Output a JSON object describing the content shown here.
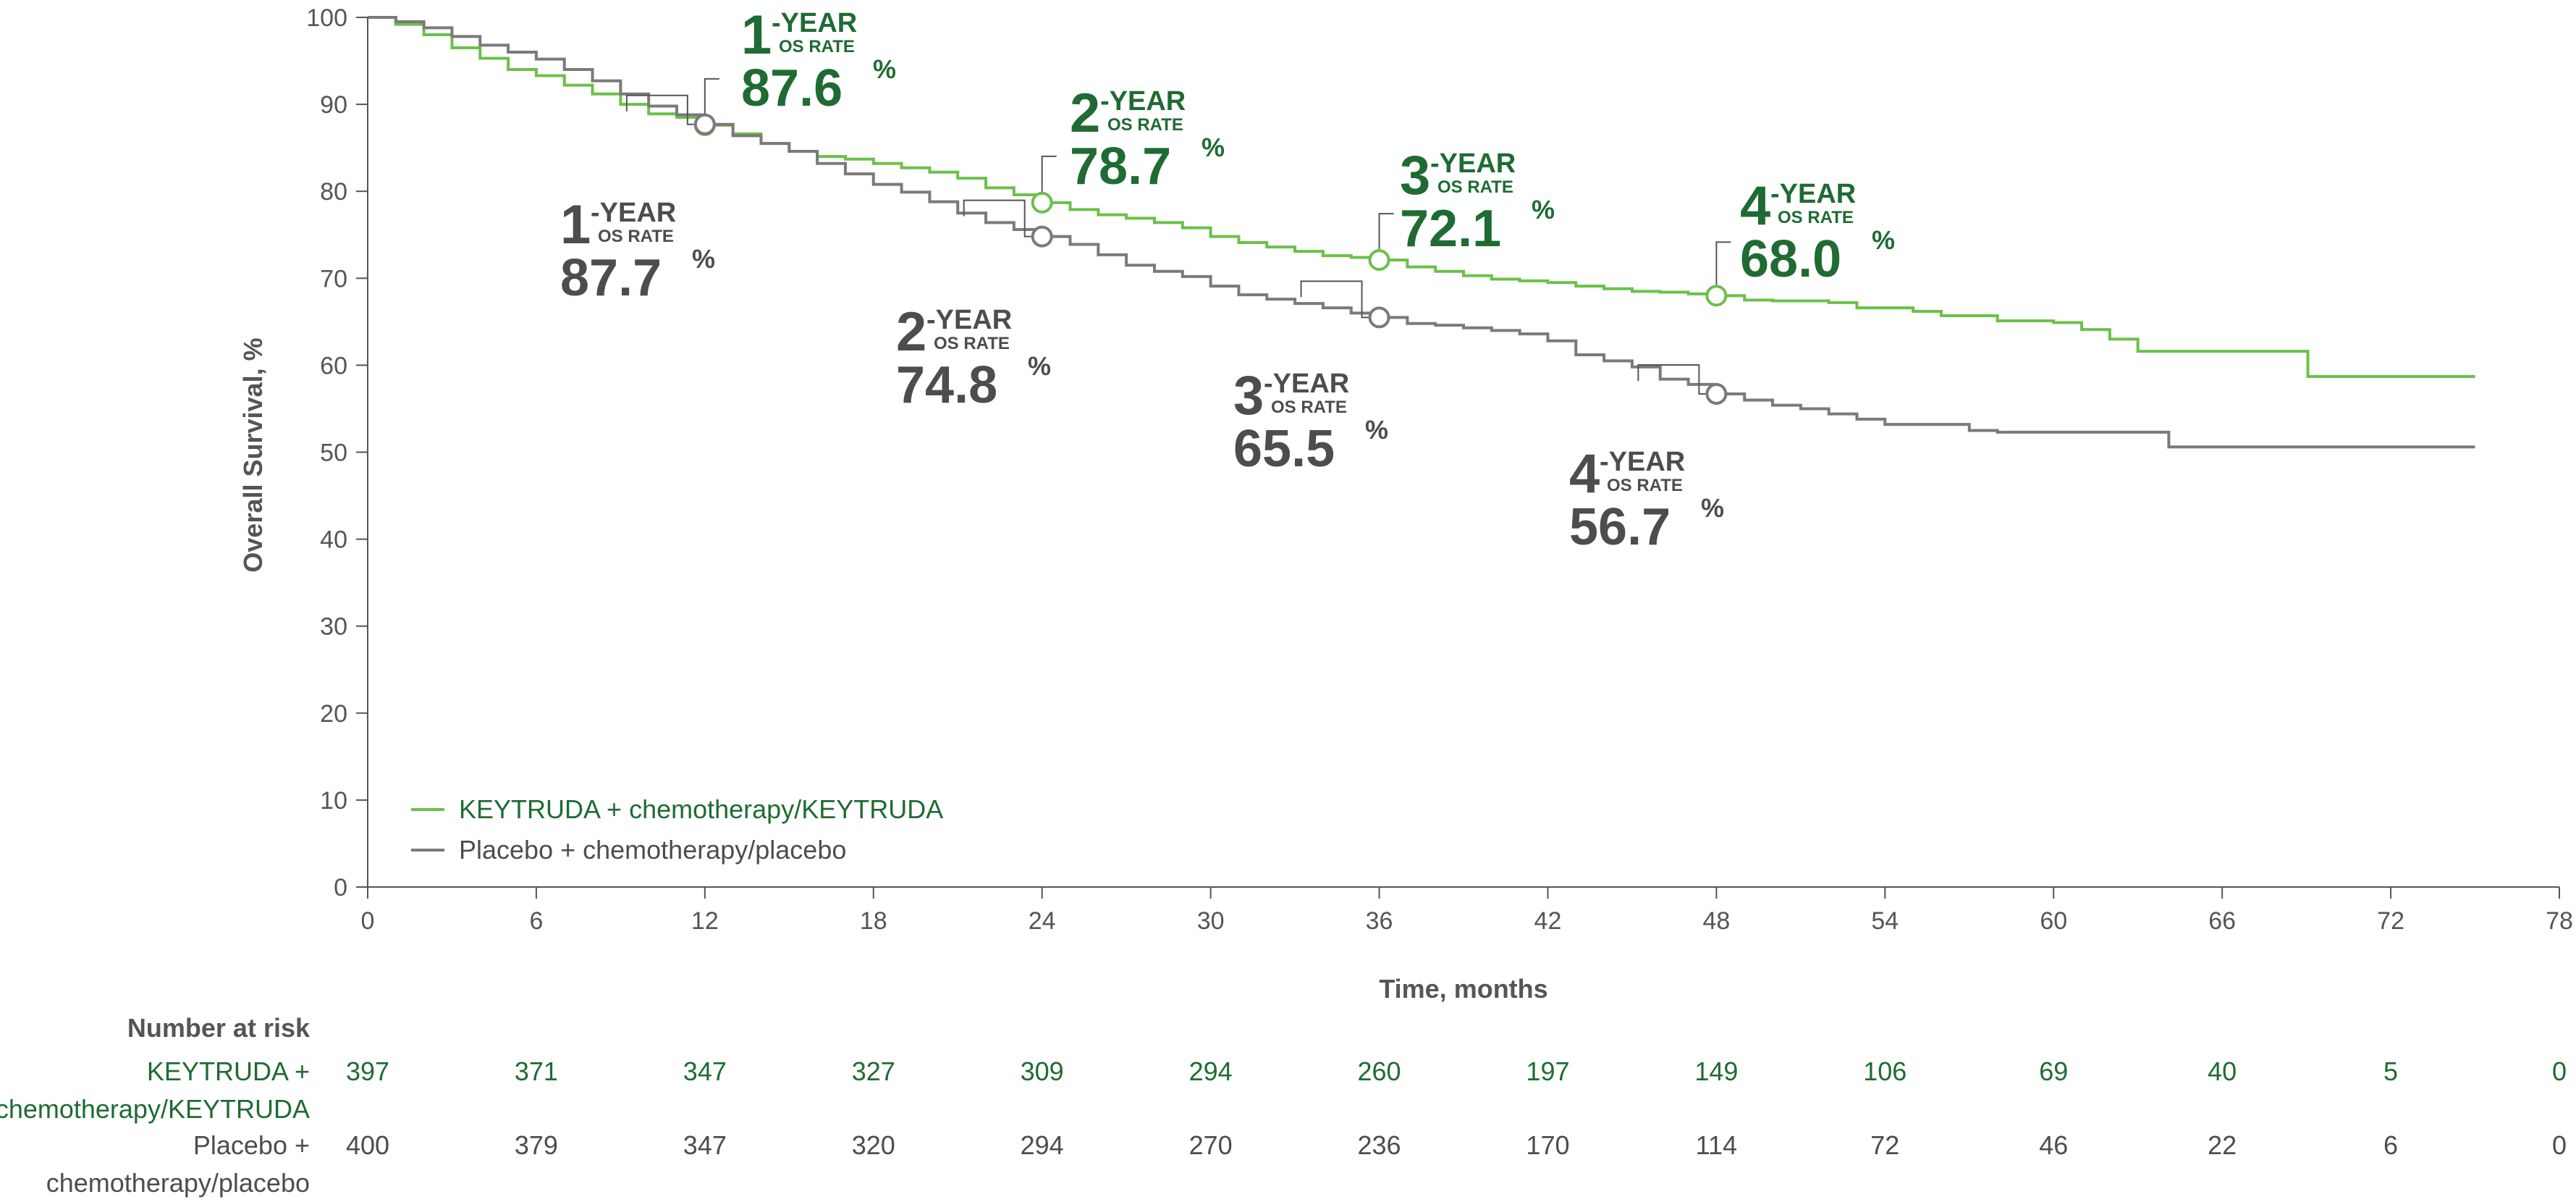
{
  "colors": {
    "keytruda": "#1f6b33",
    "keytruda_line": "#6cc04a",
    "placebo": "#4d4d4d",
    "placebo_line": "#7a7a7a",
    "axis": "#555555"
  },
  "chart_data": {
    "type": "line",
    "xlabel": "Time, months",
    "ylabel": "Overall Survival, %",
    "xlim": [
      0,
      78
    ],
    "ylim": [
      0,
      100
    ],
    "xticks": [
      0,
      6,
      12,
      18,
      24,
      30,
      36,
      42,
      48,
      54,
      60,
      66,
      72,
      78
    ],
    "yticks": [
      0,
      10,
      20,
      30,
      40,
      50,
      60,
      70,
      80,
      90,
      100
    ],
    "grid": false,
    "legend_position": "bottom-left",
    "series": [
      {
        "name": "KEYTRUDA + chemotherapy/KEYTRUDA",
        "key": "keytruda",
        "points": [
          [
            0,
            100
          ],
          [
            1,
            99.2
          ],
          [
            2,
            98
          ],
          [
            3,
            96.5
          ],
          [
            4,
            95.3
          ],
          [
            5,
            94
          ],
          [
            6,
            93.3
          ],
          [
            7,
            92.2
          ],
          [
            8,
            91.2
          ],
          [
            9,
            90
          ],
          [
            10,
            88.9
          ],
          [
            11,
            88.5
          ],
          [
            12,
            87.6
          ],
          [
            13,
            86.6
          ],
          [
            14,
            85.5
          ],
          [
            15,
            84.6
          ],
          [
            16,
            84
          ],
          [
            17,
            83.7
          ],
          [
            18,
            83.2
          ],
          [
            19,
            82.7
          ],
          [
            20,
            82.2
          ],
          [
            21,
            81.5
          ],
          [
            22,
            80.4
          ],
          [
            23,
            79.6
          ],
          [
            24,
            78.7
          ],
          [
            25,
            77.9
          ],
          [
            26,
            77.3
          ],
          [
            27,
            76.9
          ],
          [
            28,
            76.4
          ],
          [
            29,
            75.8
          ],
          [
            30,
            74.8
          ],
          [
            31,
            74.1
          ],
          [
            32,
            73.6
          ],
          [
            33,
            73.1
          ],
          [
            34,
            72.6
          ],
          [
            35,
            72.4
          ],
          [
            36,
            72.1
          ],
          [
            37,
            71.3
          ],
          [
            38,
            70.8
          ],
          [
            39,
            70.3
          ],
          [
            40,
            69.9
          ],
          [
            41,
            69.7
          ],
          [
            42,
            69.5
          ],
          [
            43,
            69.1
          ],
          [
            44,
            68.8
          ],
          [
            45,
            68.5
          ],
          [
            46,
            68.4
          ],
          [
            47,
            68.2
          ],
          [
            48,
            68.0
          ],
          [
            49,
            67.5
          ],
          [
            50,
            67.4
          ],
          [
            52,
            67.2
          ],
          [
            53,
            66.6
          ],
          [
            55,
            66.2
          ],
          [
            56,
            65.7
          ],
          [
            58,
            65.1
          ],
          [
            60,
            64.9
          ],
          [
            61,
            64.1
          ],
          [
            62,
            63.0
          ],
          [
            63,
            61.6
          ],
          [
            66,
            61.6
          ],
          [
            69,
            61.6
          ],
          [
            69.05,
            58.7
          ],
          [
            75,
            58.7
          ]
        ],
        "milestones": [
          {
            "month": 12,
            "value": 87.6,
            "num": "1",
            "suffix": "-YEAR",
            "sub": "OS RATE",
            "pct": "87.6",
            "pct_sign": "%"
          },
          {
            "month": 24,
            "value": 78.7,
            "num": "2",
            "suffix": "-YEAR",
            "sub": "OS RATE",
            "pct": "78.7",
            "pct_sign": "%"
          },
          {
            "month": 36,
            "value": 72.1,
            "num": "3",
            "suffix": "-YEAR",
            "sub": "OS RATE",
            "pct": "72.1",
            "pct_sign": "%"
          },
          {
            "month": 48,
            "value": 68.0,
            "num": "4",
            "suffix": "-YEAR",
            "sub": "OS RATE",
            "pct": "68.0",
            "pct_sign": "%"
          }
        ]
      },
      {
        "name": "Placebo + chemotherapy/placebo",
        "key": "placebo",
        "points": [
          [
            0,
            100
          ],
          [
            1,
            99.5
          ],
          [
            2,
            98.8
          ],
          [
            3,
            97.8
          ],
          [
            4,
            96.8
          ],
          [
            5,
            96
          ],
          [
            6,
            95.2
          ],
          [
            7,
            94
          ],
          [
            8,
            92.7
          ],
          [
            9,
            91.2
          ],
          [
            10,
            89.8
          ],
          [
            11,
            88.8
          ],
          [
            12,
            87.7
          ],
          [
            13,
            86.4
          ],
          [
            14,
            85.5
          ],
          [
            15,
            84.6
          ],
          [
            16,
            83.2
          ],
          [
            17,
            82
          ],
          [
            18,
            80.8
          ],
          [
            19,
            79.9
          ],
          [
            20,
            78.8
          ],
          [
            21,
            77.5
          ],
          [
            22,
            76.4
          ],
          [
            23,
            75.6
          ],
          [
            24,
            74.8
          ],
          [
            25,
            73.9
          ],
          [
            26,
            72.7
          ],
          [
            27,
            71.5
          ],
          [
            28,
            70.8
          ],
          [
            29,
            70.2
          ],
          [
            30,
            69.1
          ],
          [
            31,
            68.1
          ],
          [
            32,
            67.6
          ],
          [
            33,
            67.1
          ],
          [
            34,
            66.6
          ],
          [
            35,
            66.0
          ],
          [
            36,
            65.5
          ],
          [
            37,
            64.8
          ],
          [
            38,
            64.6
          ],
          [
            39,
            64.3
          ],
          [
            40,
            64.0
          ],
          [
            41,
            63.6
          ],
          [
            42,
            62.8
          ],
          [
            43,
            61.2
          ],
          [
            44,
            60.5
          ],
          [
            45,
            59.8
          ],
          [
            46,
            58.4
          ],
          [
            47,
            57.8
          ],
          [
            48,
            56.7
          ],
          [
            49,
            56.0
          ],
          [
            50,
            55.4
          ],
          [
            51,
            55.0
          ],
          [
            52,
            54.4
          ],
          [
            53,
            53.8
          ],
          [
            54,
            53.2
          ],
          [
            56,
            53.2
          ],
          [
            57,
            52.5
          ],
          [
            58,
            52.3
          ],
          [
            60,
            52.3
          ],
          [
            64,
            52.3
          ],
          [
            64.1,
            50.6
          ],
          [
            75,
            50.6
          ]
        ],
        "milestones": [
          {
            "month": 12,
            "value": 87.7,
            "num": "1",
            "suffix": "-YEAR",
            "sub": "OS RATE",
            "pct": "87.7",
            "pct_sign": "%"
          },
          {
            "month": 24,
            "value": 74.8,
            "num": "2",
            "suffix": "-YEAR",
            "sub": "OS RATE",
            "pct": "74.8",
            "pct_sign": "%"
          },
          {
            "month": 36,
            "value": 65.5,
            "num": "3",
            "suffix": "-YEAR",
            "sub": "OS RATE",
            "pct": "65.5",
            "pct_sign": "%"
          },
          {
            "month": 48,
            "value": 56.7,
            "num": "4",
            "suffix": "-YEAR",
            "sub": "OS RATE",
            "pct": "56.7",
            "pct_sign": "%"
          }
        ]
      }
    ],
    "number_at_risk": {
      "title": "Number at risk",
      "rows": [
        {
          "key": "keytruda",
          "label_lines": [
            "KEYTRUDA +",
            "chemotherapy/KEYTRUDA"
          ],
          "values": [
            397,
            371,
            347,
            327,
            309,
            294,
            260,
            197,
            149,
            106,
            69,
            40,
            5,
            0
          ]
        },
        {
          "key": "placebo",
          "label_lines": [
            "Placebo +",
            "chemotherapy/placebo"
          ],
          "values": [
            400,
            379,
            347,
            320,
            294,
            270,
            236,
            170,
            114,
            72,
            46,
            22,
            6,
            0
          ]
        }
      ]
    }
  }
}
